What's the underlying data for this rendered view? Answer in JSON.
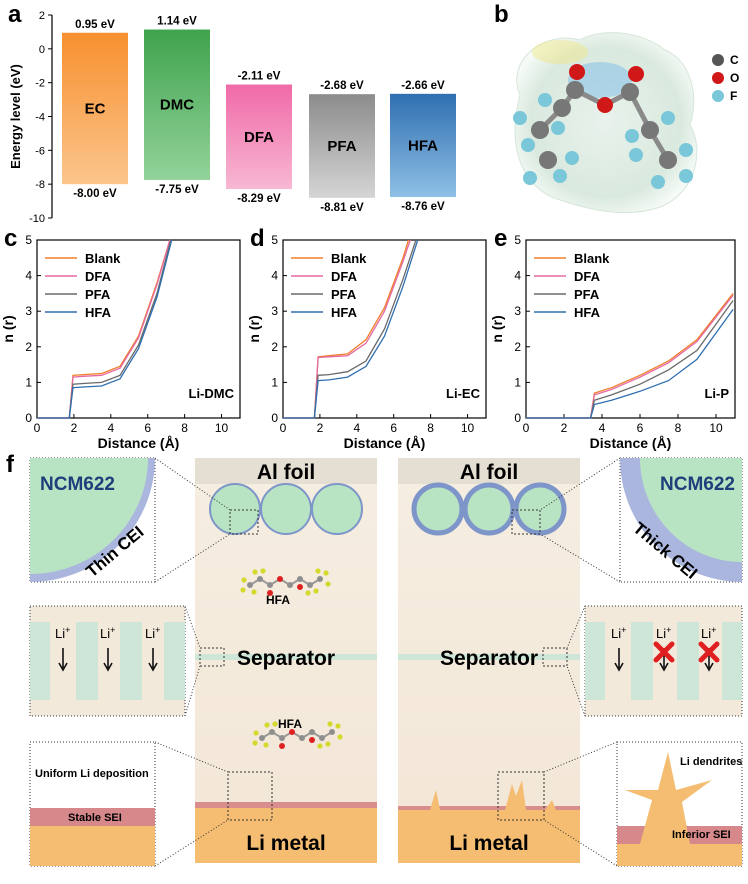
{
  "panel_letters": {
    "a": "a",
    "b": "b",
    "c": "c",
    "d": "d",
    "e": "e",
    "f": "f"
  },
  "panel_a": {
    "ylabel": "Energy level (eV)",
    "yticks": [
      "2",
      "0",
      "-2",
      "-4",
      "-6",
      "-8",
      "-10"
    ],
    "ytick_values": [
      2,
      0,
      -2,
      -4,
      -6,
      -8,
      -10
    ],
    "bars": [
      {
        "name": "EC",
        "top": 0.95,
        "bottom": -8.0,
        "top_label": "0.95 eV",
        "bottom_label": "-8.00 eV",
        "color_top": "#f7902f",
        "color_bottom": "#fbc58c"
      },
      {
        "name": "DMC",
        "top": 1.14,
        "bottom": -7.75,
        "top_label": "1.14 eV",
        "bottom_label": "-7.75 eV",
        "color_top": "#3fa34d",
        "color_bottom": "#93d39a"
      },
      {
        "name": "DFA",
        "top": -2.11,
        "bottom": -8.29,
        "top_label": "-2.11 eV",
        "bottom_label": "-8.29 eV",
        "color_top": "#f06aa8",
        "color_bottom": "#f7b8d3"
      },
      {
        "name": "PFA",
        "top": -2.68,
        "bottom": -8.81,
        "top_label": "-2.68 eV",
        "bottom_label": "-8.81 eV",
        "color_top": "#8c8c8c",
        "color_bottom": "#d5d5d5"
      },
      {
        "name": "HFA",
        "top": -2.66,
        "bottom": -8.76,
        "top_label": "-2.66 eV",
        "bottom_label": "-8.76 eV",
        "color_top": "#2f6fb0",
        "color_bottom": "#8fc0e6"
      }
    ]
  },
  "panel_b": {
    "legend": [
      {
        "label": "C",
        "color": "#555555"
      },
      {
        "label": "O",
        "color": "#d01818"
      },
      {
        "label": "F",
        "color": "#79c7d9"
      }
    ]
  },
  "chart_data": [
    {
      "type": "line",
      "panel": "c",
      "annotation": "Li-DMC",
      "xlabel": "Distance (Å)",
      "ylabel": "n (r)",
      "xlim": [
        0,
        11
      ],
      "ylim": [
        0,
        5
      ],
      "xticks": [
        "0",
        "2",
        "4",
        "6",
        "8",
        "10"
      ],
      "yticks": [
        "0",
        "1",
        "2",
        "3",
        "4",
        "5"
      ],
      "series": [
        {
          "name": "Blank",
          "color": "#f07f2a",
          "x": [
            0,
            1.75,
            1.95,
            2.5,
            3.5,
            4.5,
            5.5,
            6.5,
            7.2
          ],
          "y": [
            0,
            0,
            1.2,
            1.22,
            1.25,
            1.45,
            2.3,
            3.8,
            5.0
          ]
        },
        {
          "name": "DFA",
          "color": "#e56aa3",
          "x": [
            0,
            1.75,
            1.95,
            2.5,
            3.5,
            4.5,
            5.5,
            6.5,
            7.2
          ],
          "y": [
            0,
            0,
            1.15,
            1.17,
            1.2,
            1.4,
            2.25,
            3.75,
            5.0
          ]
        },
        {
          "name": "PFA",
          "color": "#6a6a6a",
          "x": [
            0,
            1.75,
            1.95,
            2.5,
            3.5,
            4.5,
            5.5,
            6.5,
            7.25
          ],
          "y": [
            0,
            0,
            0.95,
            0.97,
            1.0,
            1.2,
            2.05,
            3.5,
            5.0
          ]
        },
        {
          "name": "HFA",
          "color": "#2f6fb0",
          "x": [
            0,
            1.75,
            1.95,
            2.5,
            3.5,
            4.5,
            5.5,
            6.5,
            7.3
          ],
          "y": [
            0,
            0,
            0.85,
            0.87,
            0.9,
            1.1,
            1.95,
            3.4,
            5.0
          ]
        }
      ]
    },
    {
      "type": "line",
      "panel": "d",
      "annotation": "Li-EC",
      "xlabel": "Distance (Å)",
      "ylabel": "n (r)",
      "xlim": [
        0,
        11
      ],
      "ylim": [
        0,
        5
      ],
      "xticks": [
        "0",
        "2",
        "4",
        "6",
        "8",
        "10"
      ],
      "yticks": [
        "0",
        "1",
        "2",
        "3",
        "4",
        "5"
      ],
      "series": [
        {
          "name": "Blank",
          "color": "#f07f2a",
          "x": [
            0,
            1.7,
            1.9,
            2.5,
            3.5,
            4.5,
            5.5,
            6.5,
            6.8
          ],
          "y": [
            0,
            0,
            1.72,
            1.75,
            1.8,
            2.2,
            3.1,
            4.5,
            5.0
          ]
        },
        {
          "name": "DFA",
          "color": "#e56aa3",
          "x": [
            0,
            1.7,
            1.9,
            2.5,
            3.5,
            4.5,
            5.5,
            6.5,
            6.9
          ],
          "y": [
            0,
            0,
            1.7,
            1.72,
            1.75,
            2.1,
            3.0,
            4.4,
            5.0
          ]
        },
        {
          "name": "PFA",
          "color": "#6a6a6a",
          "x": [
            0,
            1.7,
            1.9,
            2.5,
            3.5,
            4.5,
            5.5,
            6.5,
            7.2
          ],
          "y": [
            0,
            0,
            1.2,
            1.22,
            1.3,
            1.6,
            2.5,
            3.9,
            5.0
          ]
        },
        {
          "name": "HFA",
          "color": "#2f6fb0",
          "x": [
            0,
            1.7,
            1.9,
            2.5,
            3.5,
            4.5,
            5.5,
            6.5,
            7.3
          ],
          "y": [
            0,
            0,
            1.05,
            1.07,
            1.15,
            1.45,
            2.3,
            3.7,
            5.0
          ]
        }
      ]
    },
    {
      "type": "line",
      "panel": "e",
      "annotation": "Li-P",
      "xlabel": "Distance (Å)",
      "ylabel": "n (r)",
      "xlim": [
        0,
        11
      ],
      "ylim": [
        0,
        5
      ],
      "xticks": [
        "0",
        "2",
        "4",
        "6",
        "8",
        "10"
      ],
      "yticks": [
        "0",
        "1",
        "2",
        "3",
        "4",
        "5"
      ],
      "series": [
        {
          "name": "Blank",
          "color": "#f07f2a",
          "x": [
            0,
            3.4,
            3.6,
            4.5,
            6,
            7.5,
            9,
            10.9
          ],
          "y": [
            0,
            0,
            0.7,
            0.85,
            1.2,
            1.6,
            2.2,
            3.5
          ]
        },
        {
          "name": "DFA",
          "color": "#e56aa3",
          "x": [
            0,
            3.4,
            3.6,
            4.5,
            6,
            7.5,
            9,
            10.9
          ],
          "y": [
            0,
            0,
            0.65,
            0.8,
            1.15,
            1.55,
            2.15,
            3.45
          ]
        },
        {
          "name": "PFA",
          "color": "#6a6a6a",
          "x": [
            0,
            3.4,
            3.6,
            4.5,
            6,
            7.5,
            9,
            10.9
          ],
          "y": [
            0,
            0,
            0.5,
            0.65,
            0.95,
            1.35,
            1.9,
            3.3
          ]
        },
        {
          "name": "HFA",
          "color": "#2f6fb0",
          "x": [
            0,
            3.4,
            3.6,
            4.5,
            6,
            7.5,
            9,
            10.9
          ],
          "y": [
            0,
            0,
            0.38,
            0.5,
            0.75,
            1.05,
            1.65,
            3.05
          ]
        }
      ]
    }
  ],
  "panel_f": {
    "al_foil": "Al foil",
    "separator": "Separator",
    "li_metal": "Li metal",
    "ncm": "NCM622",
    "thin_cei": "Thin CEI",
    "thick_cei": "Thick CEI",
    "hfa": "HFA",
    "li_ion": "Li",
    "li_sup": "+",
    "uniform": "Uniform Li deposition",
    "stable_sei": "Stable SEI",
    "dendrites": "Li dendrites",
    "inferior_sei": "Inferior SEI"
  }
}
